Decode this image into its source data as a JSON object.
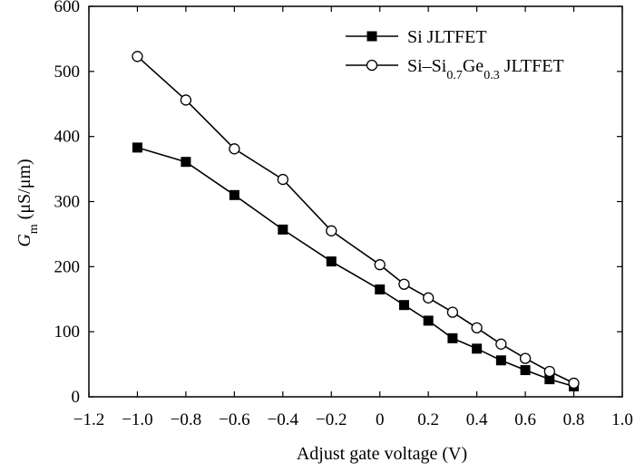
{
  "chart_data": {
    "type": "line",
    "title": "",
    "xlabel": "Adjust gate voltage (V)",
    "ylabel": {
      "symbol": "G",
      "subscript": "m",
      "unit": "(μS/μm)"
    },
    "xlim": [
      -1.2,
      1.0
    ],
    "ylim": [
      0,
      600
    ],
    "x_ticks": [
      -1.2,
      -1.0,
      -0.8,
      -0.6,
      -0.4,
      -0.2,
      0,
      0.2,
      0.4,
      0.6,
      0.8,
      1.0
    ],
    "x_tick_labels": [
      "−1.2",
      "−1.0",
      "−0.8",
      "−0.6",
      "−0.4",
      "−0.2",
      "0",
      "0.2",
      "0.4",
      "0.6",
      "0.8",
      "1.0"
    ],
    "y_ticks": [
      0,
      100,
      200,
      300,
      400,
      500,
      600
    ],
    "y_tick_labels": [
      "0",
      "100",
      "200",
      "300",
      "400",
      "500",
      "600"
    ],
    "grid": false,
    "legend_position": "top-right",
    "series": [
      {
        "name": "Si JLTFET",
        "marker": "filled-square",
        "x": [
          -1.0,
          -0.8,
          -0.6,
          -0.4,
          -0.2,
          0,
          0.1,
          0.2,
          0.3,
          0.4,
          0.5,
          0.6,
          0.7,
          0.8
        ],
        "y": [
          383,
          361,
          310,
          257,
          208,
          165,
          141,
          117,
          90,
          74,
          56,
          41,
          27,
          16
        ]
      },
      {
        "name": "Si–Si0.7Ge0.3 JLTFET",
        "name_parts": {
          "pre": "Si–Si",
          "sub1": "0.7",
          "mid": "Ge",
          "sub2": "0.3",
          "post": " JLTFET"
        },
        "marker": "open-circle",
        "x": [
          -1.0,
          -0.8,
          -0.6,
          -0.4,
          -0.2,
          0,
          0.1,
          0.2,
          0.3,
          0.4,
          0.5,
          0.6,
          0.7,
          0.8
        ],
        "y": [
          523,
          456,
          381,
          334,
          255,
          203,
          173,
          152,
          130,
          106,
          81,
          59,
          39,
          21
        ]
      }
    ]
  }
}
